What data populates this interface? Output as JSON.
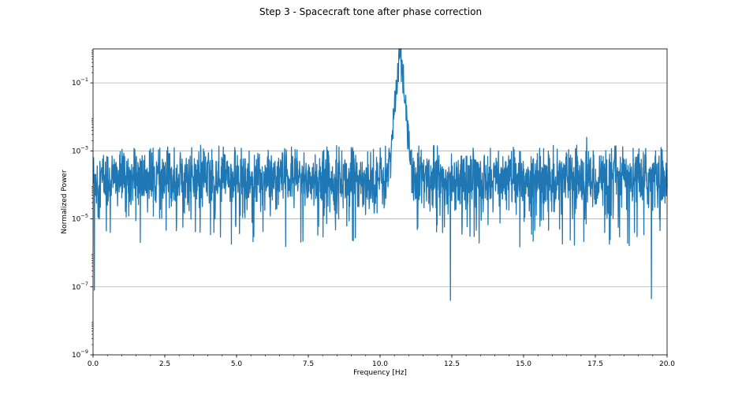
{
  "chart_data": {
    "type": "line",
    "title": "Step 3 - Spacecraft tone after phase correction",
    "xlabel": "Frequency [Hz]",
    "ylabel": "Normalized Power",
    "xlim": [
      0.0,
      20.0
    ],
    "ylim": [
      1e-09,
      1.0
    ],
    "yscale": "log",
    "grid": "y-major",
    "line_color": "#1f77b4",
    "x_ticks": [
      "0.0",
      "2.5",
      "5.0",
      "7.5",
      "10.0",
      "12.5",
      "15.0",
      "17.5",
      "20.0"
    ],
    "y_ticks": [
      {
        "base": "10",
        "exp": "−9",
        "value": 1e-09
      },
      {
        "base": "10",
        "exp": "−7",
        "value": 1e-07
      },
      {
        "base": "10",
        "exp": "−5",
        "value": 1e-05
      },
      {
        "base": "10",
        "exp": "−3",
        "value": 0.001
      },
      {
        "base": "10",
        "exp": "−1",
        "value": 0.1
      }
    ],
    "series": [
      {
        "noise_floor": {
          "median": 0.00015,
          "peak_max": 0.0015,
          "dip_min": 3e-08
        },
        "tone": {
          "frequency": 10.7,
          "peak_power": 1.0,
          "shoulder_power": 0.002,
          "shoulder_range": [
            10.3,
            11.1
          ]
        },
        "dips": [
          {
            "x": 0.05,
            "y": 8e-08
          },
          {
            "x": 0.6,
            "y": 4e-06
          },
          {
            "x": 5.6,
            "y": 3e-06
          },
          {
            "x": 12.45,
            "y": 4e-08
          },
          {
            "x": 16.25,
            "y": 5e-06
          },
          {
            "x": 18.95,
            "y": 3e-06
          },
          {
            "x": 19.45,
            "y": 4.5e-08
          }
        ],
        "spikes": [
          {
            "x": 17.2,
            "y": 0.0025
          }
        ]
      }
    ]
  }
}
